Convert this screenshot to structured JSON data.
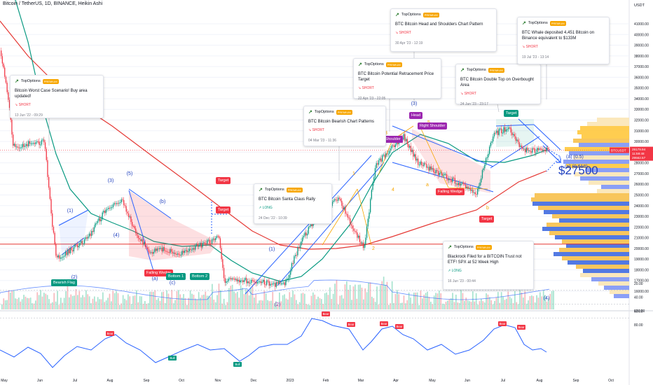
{
  "header": {
    "symbol_line": "Bitcoin / TetherUS, 1D, BINANCE, Heikin Ashi",
    "currency": "USDT"
  },
  "chart_data": {
    "type": "candlestick",
    "timeframe": "1D",
    "price_axis": {
      "min": 15500,
      "max": 41500,
      "ticks": [
        "41000.00",
        "40000.00",
        "39000.00",
        "38000.00",
        "37000.00",
        "36000.00",
        "35000.00",
        "34000.00",
        "33000.00",
        "32000.00",
        "31000.00",
        "30000.00",
        "29000.00",
        "28000.00",
        "27000.00",
        "26000.00",
        "25000.00",
        "24000.00",
        "23000.00",
        "22000.00",
        "21000.00",
        "20000.00",
        "19000.00",
        "18000.00",
        "17000.00",
        "16000.00"
      ]
    },
    "x_axis": {
      "ticks": [
        "May",
        "Jun",
        "Jul",
        "Aug",
        "Sep",
        "Oct",
        "Nov",
        "Dec",
        "2023",
        "Feb",
        "Mar",
        "Apr",
        "May",
        "Jun",
        "Jul",
        "Aug",
        "Sep",
        "Oct"
      ]
    },
    "price_series": {
      "name": "BTCUSDT",
      "points": [
        [
          "2022-05-01",
          38500
        ],
        [
          "2022-05-09",
          33000
        ],
        [
          "2022-05-12",
          29500
        ],
        [
          "2022-05-25",
          29800
        ],
        [
          "2022-06-08",
          30000
        ],
        [
          "2022-06-13",
          24000
        ],
        [
          "2022-06-18",
          19000
        ],
        [
          "2022-06-30",
          19800
        ],
        [
          "2022-07-15",
          21000
        ],
        [
          "2022-07-30",
          23500
        ],
        [
          "2022-08-14",
          24500
        ],
        [
          "2022-08-25",
          21500
        ],
        [
          "2022-09-07",
          19500
        ],
        [
          "2022-09-15",
          20000
        ],
        [
          "2022-10-01",
          19500
        ],
        [
          "2022-10-25",
          20500
        ],
        [
          "2022-11-05",
          21000
        ],
        [
          "2022-11-10",
          17000
        ],
        [
          "2022-12-01",
          17000
        ],
        [
          "2022-12-20",
          16700
        ],
        [
          "2023-01-01",
          16600
        ],
        [
          "2023-01-15",
          20800
        ],
        [
          "2023-01-31",
          23200
        ],
        [
          "2023-02-16",
          24700
        ],
        [
          "2023-03-10",
          20000
        ],
        [
          "2023-03-20",
          27800
        ],
        [
          "2023-04-13",
          30500
        ],
        [
          "2023-04-26",
          28000
        ],
        [
          "2023-05-15",
          27000
        ],
        [
          "2023-06-15",
          25200
        ],
        [
          "2023-06-30",
          30700
        ],
        [
          "2023-07-13",
          31300
        ],
        [
          "2023-07-25",
          29200
        ],
        [
          "2023-08-03",
          29200
        ]
      ]
    },
    "last_price": {
      "label": "BTCUSDT",
      "value": "29179.94",
      "countdown": "11:59:48",
      "secondary": "29562.57"
    },
    "moving_averages": [
      {
        "color": "#089981"
      },
      {
        "color": "#e53935"
      }
    ],
    "projection_labels": [
      "(a) (0.5)",
      "(a) (0.618)"
    ],
    "target_text": "$27500",
    "wave_labels": [
      "(1)",
      "(2)",
      "(3)",
      "(4)",
      "(5)",
      "(a)",
      "(b)",
      "(c)",
      "(1)",
      "(2)",
      "(3)",
      "1",
      "2",
      "3",
      "4",
      "5",
      "a",
      "b",
      "(4)"
    ],
    "pattern_tags": [
      {
        "text": "Bearish Flag",
        "color": "#089981"
      },
      {
        "text": "Falling Wedge",
        "color": "#f23645"
      },
      {
        "text": "Bottom 1",
        "color": "#089981"
      },
      {
        "text": "Bottom 2",
        "color": "#089981"
      },
      {
        "text": "Target",
        "color": "#f23645"
      },
      {
        "text": "Target",
        "color": "#f23645"
      },
      {
        "text": "Left Shoulder",
        "color": "#9c27b0"
      },
      {
        "text": "Head",
        "color": "#9c27b0"
      },
      {
        "text": "Right Shoulder",
        "color": "#9c27b0"
      },
      {
        "text": "Falling Wedge",
        "color": "#f23645"
      },
      {
        "text": "Target",
        "color": "#f23645"
      },
      {
        "text": "Target",
        "color": "#089981"
      }
    ],
    "ideas": [
      {
        "brand": "TopOptions",
        "badge": "PREMIUM",
        "title": "Bitcoin Worst Case Scenario! Buy area updated!",
        "direction": "SHORT",
        "date": "13 Jun '22 - 09:29"
      },
      {
        "brand": "TopOptions",
        "badge": "PREMIUM",
        "title": "BTC Bitcoin Bearish Chart Patterns",
        "direction": "SHORT",
        "date": "04 Mar '23 - 11:36"
      },
      {
        "brand": "TopOptions",
        "badge": "PREMIUM",
        "title": "BTC Bitcoin Santa Claus Rally",
        "direction": "LONG",
        "date": "24 Dec '22 - 10:39"
      },
      {
        "brand": "TopOptions",
        "badge": "PREMIUM",
        "title": "BTC Bitcoin Potential Retracement Price Target",
        "direction": "SHORT",
        "date": "22 Apr '23 - 22:05"
      },
      {
        "brand": "TopOptions",
        "badge": "PREMIUM",
        "title": "BTC Bitcoin Head and Shoulders Chart Pattern",
        "direction": "SHORT",
        "date": "30 Apr '23 - 12:19"
      },
      {
        "brand": "TopOptions",
        "badge": "PREMIUM",
        "title": "BTC Bitcoin Double Top on Overbought Area",
        "direction": "SHORT",
        "date": "24 Jun '23 - 23:17"
      },
      {
        "brand": "TopOptions",
        "badge": "PREMIUM",
        "title": "BTC Whale deposited 4,451 Bitcoin on Binance equivalent to $133M",
        "direction": "SHORT",
        "date": "19 Jul '23 - 13:14"
      },
      {
        "brand": "TopOptions",
        "badge": "PREMIUM",
        "title": "Blackrock Filed for a BITCOIN Trust not ETF! SPX at 52 Week High",
        "direction": "LONG",
        "date": "16 Jun '23 - 00:44"
      }
    ],
    "volume_axis_label": "100.00",
    "rsi": {
      "axis_ticks": [
        "80.00",
        "60.00",
        "40.00",
        "20.00"
      ],
      "line_color": "#2962ff",
      "signals": [
        {
          "text": "Bear",
          "type": "bear"
        },
        {
          "text": "Bull",
          "type": "bull"
        },
        {
          "text": "Bull",
          "type": "bull"
        },
        {
          "text": "Bear",
          "type": "bear"
        },
        {
          "text": "Bear",
          "type": "bear"
        },
        {
          "text": "Bear",
          "type": "bear"
        },
        {
          "text": "Bear",
          "type": "bear"
        },
        {
          "text": "Bear",
          "type": "bear"
        },
        {
          "text": "Bear",
          "type": "bear"
        }
      ]
    }
  }
}
